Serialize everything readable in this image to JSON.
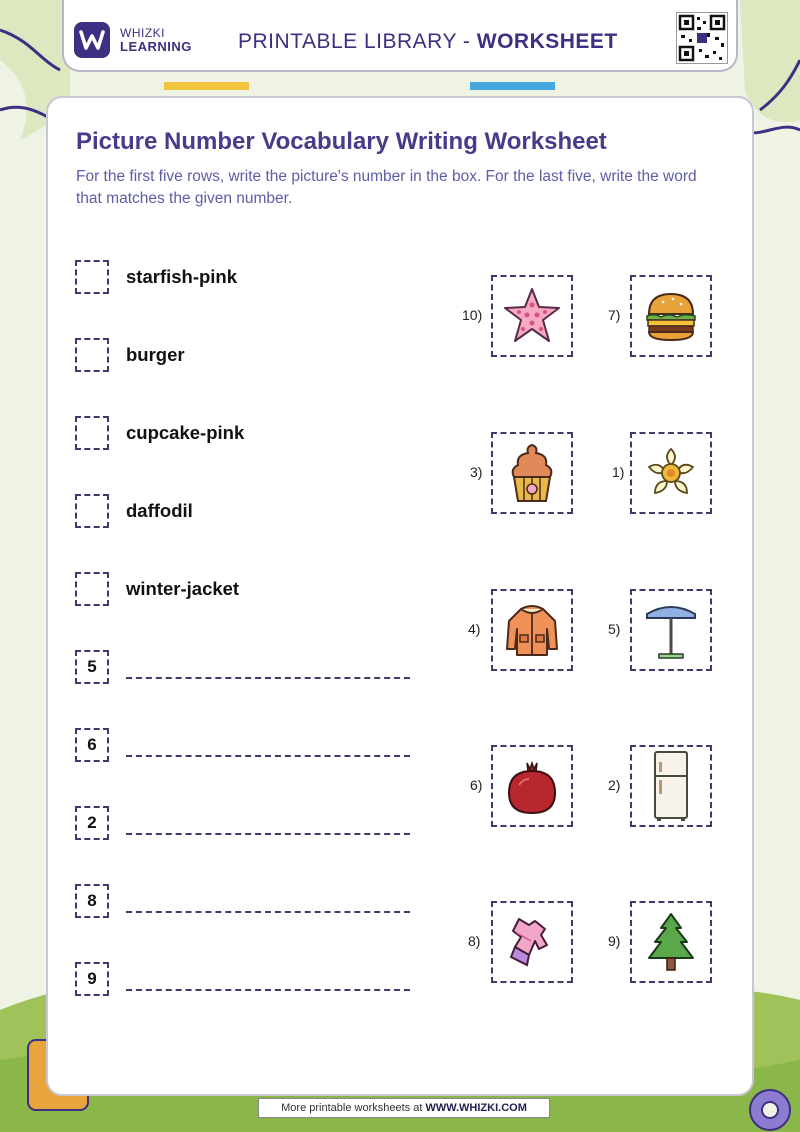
{
  "header": {
    "brand_line1": "WHIZKI",
    "brand_line2": "LEARNING",
    "title_prefix": "PRINTABLE LIBRARY - ",
    "title_bold": "WORKSHEET"
  },
  "worksheet": {
    "title": "Picture Number Vocabulary Writing Worksheet",
    "instructions": "For the first five rows, write the picture's number in the box. For the last five, write the word that matches the given number."
  },
  "word_rows": [
    {
      "word": "starfish-pink"
    },
    {
      "word": "burger"
    },
    {
      "word": "cupcake-pink"
    },
    {
      "word": "daffodil"
    },
    {
      "word": "winter-jacket"
    }
  ],
  "number_rows": [
    {
      "number": "5"
    },
    {
      "number": "6"
    },
    {
      "number": "2"
    },
    {
      "number": "8"
    },
    {
      "number": "9"
    }
  ],
  "pictures": [
    {
      "label": "10)",
      "icon": "starfish-icon"
    },
    {
      "label": "7)",
      "icon": "burger-icon"
    },
    {
      "label": "3)",
      "icon": "cupcake-icon"
    },
    {
      "label": "1)",
      "icon": "daffodil-icon"
    },
    {
      "label": "4)",
      "icon": "winter-jacket-icon"
    },
    {
      "label": "5)",
      "icon": "umbrella-table-icon"
    },
    {
      "label": "6)",
      "icon": "pomegranate-icon"
    },
    {
      "label": "2)",
      "icon": "refrigerator-icon"
    },
    {
      "label": "8)",
      "icon": "dress-icon"
    },
    {
      "label": "9)",
      "icon": "pine-tree-icon"
    }
  ],
  "footer": {
    "prefix": "More printable worksheets at ",
    "site": "WWW.WHIZKI.COM"
  },
  "colors": {
    "brand_purple": "#3d2f82",
    "title_purple": "#4a3a8c",
    "instruction_blue": "#5b5da8",
    "background_green": "#eef2e3"
  }
}
